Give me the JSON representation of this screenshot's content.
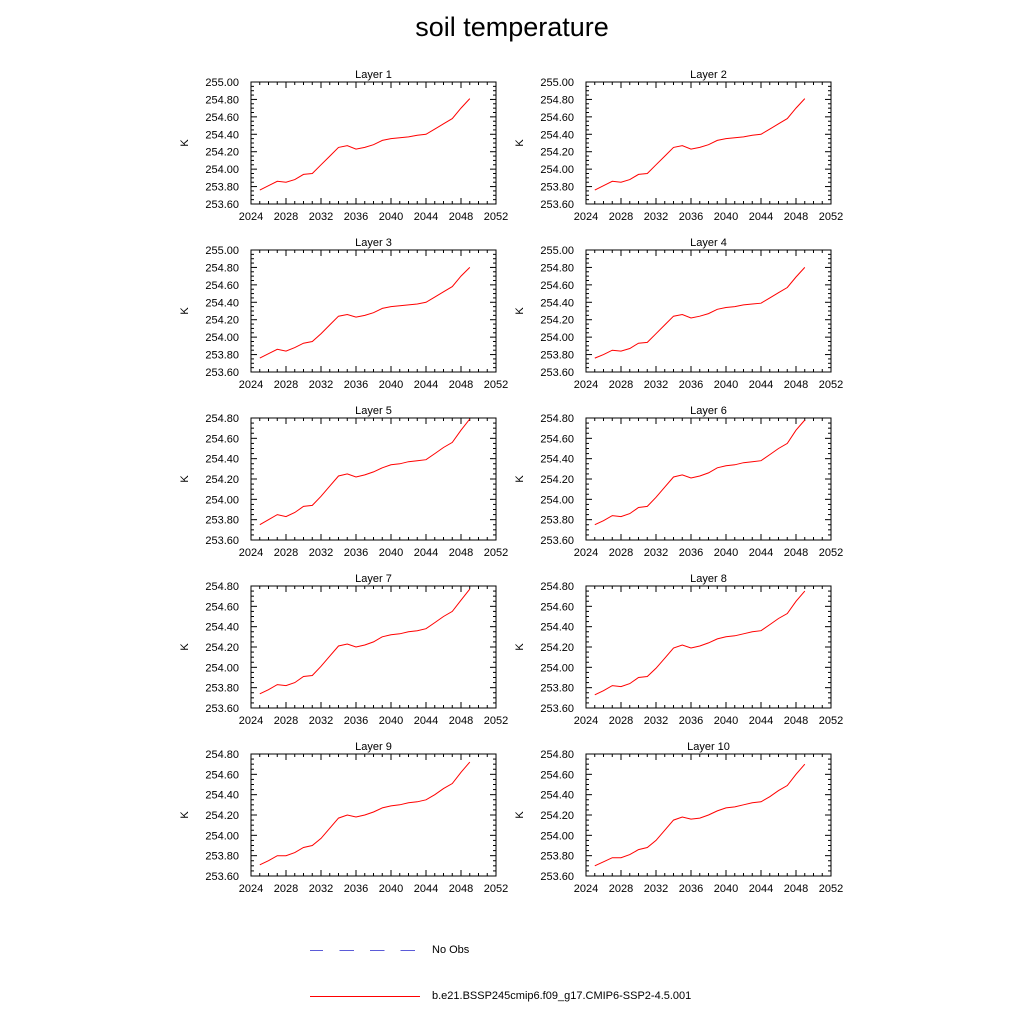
{
  "figure_title": "soil temperature",
  "legend": {
    "obs_label": "No Obs",
    "model_label": "b.e21.BSSP245cmip6.f09_g17.CMIP6-SSP2-4.5.001"
  },
  "colors": {
    "model": "#ff0000",
    "obs": "#5b5bd8"
  },
  "chart_data": [
    {
      "type": "line",
      "title": "Layer 1",
      "ylabel": "K",
      "xlim": [
        2024,
        2052
      ],
      "ylim": [
        253.6,
        255.0
      ],
      "xticks": [
        "2024",
        "2028",
        "2032",
        "2036",
        "2040",
        "2044",
        "2048",
        "2052"
      ],
      "yticks": [
        "253.60",
        "253.80",
        "254.00",
        "254.20",
        "254.40",
        "254.60",
        "254.80",
        "255.00"
      ],
      "series": [
        {
          "x": [
            2025,
            2026,
            2027,
            2028,
            2029,
            2030,
            2031,
            2032,
            2033,
            2034,
            2035,
            2036,
            2037,
            2038,
            2039,
            2040,
            2041,
            2042,
            2043,
            2044,
            2045,
            2046,
            2047,
            2048,
            2049
          ],
          "y": [
            253.76,
            253.81,
            253.86,
            253.85,
            253.88,
            253.94,
            253.95,
            254.05,
            254.15,
            254.25,
            254.27,
            254.23,
            254.25,
            254.28,
            254.33,
            254.35,
            254.36,
            254.37,
            254.39,
            254.4,
            254.46,
            254.52,
            254.58,
            254.7,
            254.81
          ]
        }
      ]
    },
    {
      "type": "line",
      "title": "Layer 2",
      "ylabel": "K",
      "xlim": [
        2024,
        2052
      ],
      "ylim": [
        253.6,
        255.0
      ],
      "xticks": [
        "2024",
        "2028",
        "2032",
        "2036",
        "2040",
        "2044",
        "2048",
        "2052"
      ],
      "yticks": [
        "253.60",
        "253.80",
        "254.00",
        "254.20",
        "254.40",
        "254.60",
        "254.80",
        "255.00"
      ],
      "series": [
        {
          "x": [
            2025,
            2026,
            2027,
            2028,
            2029,
            2030,
            2031,
            2032,
            2033,
            2034,
            2035,
            2036,
            2037,
            2038,
            2039,
            2040,
            2041,
            2042,
            2043,
            2044,
            2045,
            2046,
            2047,
            2048,
            2049
          ],
          "y": [
            253.76,
            253.81,
            253.86,
            253.85,
            253.88,
            253.94,
            253.95,
            254.05,
            254.15,
            254.25,
            254.27,
            254.23,
            254.25,
            254.28,
            254.33,
            254.35,
            254.36,
            254.37,
            254.39,
            254.4,
            254.46,
            254.52,
            254.58,
            254.7,
            254.81
          ]
        }
      ]
    },
    {
      "type": "line",
      "title": "Layer 3",
      "ylabel": "K",
      "xlim": [
        2024,
        2052
      ],
      "ylim": [
        253.6,
        255.0
      ],
      "xticks": [
        "2024",
        "2028",
        "2032",
        "2036",
        "2040",
        "2044",
        "2048",
        "2052"
      ],
      "yticks": [
        "253.60",
        "253.80",
        "254.00",
        "254.20",
        "254.40",
        "254.60",
        "254.80",
        "255.00"
      ],
      "series": [
        {
          "x": [
            2025,
            2026,
            2027,
            2028,
            2029,
            2030,
            2031,
            2032,
            2033,
            2034,
            2035,
            2036,
            2037,
            2038,
            2039,
            2040,
            2041,
            2042,
            2043,
            2044,
            2045,
            2046,
            2047,
            2048,
            2049
          ],
          "y": [
            253.76,
            253.81,
            253.86,
            253.84,
            253.88,
            253.93,
            253.95,
            254.04,
            254.14,
            254.24,
            254.26,
            254.23,
            254.25,
            254.28,
            254.33,
            254.35,
            254.36,
            254.37,
            254.38,
            254.4,
            254.46,
            254.52,
            254.58,
            254.7,
            254.8
          ]
        }
      ]
    },
    {
      "type": "line",
      "title": "Layer 4",
      "ylabel": "K",
      "xlim": [
        2024,
        2052
      ],
      "ylim": [
        253.6,
        255.0
      ],
      "xticks": [
        "2024",
        "2028",
        "2032",
        "2036",
        "2040",
        "2044",
        "2048",
        "2052"
      ],
      "yticks": [
        "253.60",
        "253.80",
        "254.00",
        "254.20",
        "254.40",
        "254.60",
        "254.80",
        "255.00"
      ],
      "series": [
        {
          "x": [
            2025,
            2026,
            2027,
            2028,
            2029,
            2030,
            2031,
            2032,
            2033,
            2034,
            2035,
            2036,
            2037,
            2038,
            2039,
            2040,
            2041,
            2042,
            2043,
            2044,
            2045,
            2046,
            2047,
            2048,
            2049
          ],
          "y": [
            253.76,
            253.8,
            253.85,
            253.84,
            253.87,
            253.93,
            253.94,
            254.04,
            254.14,
            254.24,
            254.26,
            254.22,
            254.24,
            254.27,
            254.32,
            254.34,
            254.35,
            254.37,
            254.38,
            254.39,
            254.45,
            254.51,
            254.57,
            254.69,
            254.8
          ]
        }
      ]
    },
    {
      "type": "line",
      "title": "Layer 5",
      "ylabel": "K",
      "xlim": [
        2024,
        2052
      ],
      "ylim": [
        253.6,
        254.8
      ],
      "xticks": [
        "2024",
        "2028",
        "2032",
        "2036",
        "2040",
        "2044",
        "2048",
        "2052"
      ],
      "yticks": [
        "253.60",
        "253.80",
        "254.00",
        "254.20",
        "254.40",
        "254.60",
        "254.80"
      ],
      "series": [
        {
          "x": [
            2025,
            2026,
            2027,
            2028,
            2029,
            2030,
            2031,
            2032,
            2033,
            2034,
            2035,
            2036,
            2037,
            2038,
            2039,
            2040,
            2041,
            2042,
            2043,
            2044,
            2045,
            2046,
            2047,
            2048,
            2049
          ],
          "y": [
            253.75,
            253.8,
            253.85,
            253.83,
            253.87,
            253.93,
            253.94,
            254.03,
            254.13,
            254.23,
            254.25,
            254.22,
            254.24,
            254.27,
            254.31,
            254.34,
            254.35,
            254.37,
            254.38,
            254.39,
            254.45,
            254.51,
            254.56,
            254.68,
            254.79
          ]
        }
      ]
    },
    {
      "type": "line",
      "title": "Layer 6",
      "ylabel": "K",
      "xlim": [
        2024,
        2052
      ],
      "ylim": [
        253.6,
        254.8
      ],
      "xticks": [
        "2024",
        "2028",
        "2032",
        "2036",
        "2040",
        "2044",
        "2048",
        "2052"
      ],
      "yticks": [
        "253.60",
        "253.80",
        "254.00",
        "254.20",
        "254.40",
        "254.60",
        "254.80"
      ],
      "series": [
        {
          "x": [
            2025,
            2026,
            2027,
            2028,
            2029,
            2030,
            2031,
            2032,
            2033,
            2034,
            2035,
            2036,
            2037,
            2038,
            2039,
            2040,
            2041,
            2042,
            2043,
            2044,
            2045,
            2046,
            2047,
            2048,
            2049
          ],
          "y": [
            253.75,
            253.79,
            253.84,
            253.83,
            253.86,
            253.92,
            253.93,
            254.02,
            254.12,
            254.22,
            254.24,
            254.21,
            254.23,
            254.26,
            254.31,
            254.33,
            254.34,
            254.36,
            254.37,
            254.38,
            254.44,
            254.5,
            254.55,
            254.68,
            254.78
          ]
        }
      ]
    },
    {
      "type": "line",
      "title": "Layer 7",
      "ylabel": "K",
      "xlim": [
        2024,
        2052
      ],
      "ylim": [
        253.6,
        254.8
      ],
      "xticks": [
        "2024",
        "2028",
        "2032",
        "2036",
        "2040",
        "2044",
        "2048",
        "2052"
      ],
      "yticks": [
        "253.60",
        "253.80",
        "254.00",
        "254.20",
        "254.40",
        "254.60",
        "254.80"
      ],
      "series": [
        {
          "x": [
            2025,
            2026,
            2027,
            2028,
            2029,
            2030,
            2031,
            2032,
            2033,
            2034,
            2035,
            2036,
            2037,
            2038,
            2039,
            2040,
            2041,
            2042,
            2043,
            2044,
            2045,
            2046,
            2047,
            2048,
            2049
          ],
          "y": [
            253.74,
            253.78,
            253.83,
            253.82,
            253.85,
            253.91,
            253.92,
            254.01,
            254.11,
            254.21,
            254.23,
            254.2,
            254.22,
            254.25,
            254.3,
            254.32,
            254.33,
            254.35,
            254.36,
            254.38,
            254.44,
            254.5,
            254.55,
            254.66,
            254.77
          ]
        }
      ]
    },
    {
      "type": "line",
      "title": "Layer 8",
      "ylabel": "K",
      "xlim": [
        2024,
        2052
      ],
      "ylim": [
        253.6,
        254.8
      ],
      "xticks": [
        "2024",
        "2028",
        "2032",
        "2036",
        "2040",
        "2044",
        "2048",
        "2052"
      ],
      "yticks": [
        "253.60",
        "253.80",
        "254.00",
        "254.20",
        "254.40",
        "254.60",
        "254.80"
      ],
      "series": [
        {
          "x": [
            2025,
            2026,
            2027,
            2028,
            2029,
            2030,
            2031,
            2032,
            2033,
            2034,
            2035,
            2036,
            2037,
            2038,
            2039,
            2040,
            2041,
            2042,
            2043,
            2044,
            2045,
            2046,
            2047,
            2048,
            2049
          ],
          "y": [
            253.73,
            253.77,
            253.82,
            253.81,
            253.84,
            253.9,
            253.91,
            253.99,
            254.09,
            254.19,
            254.22,
            254.19,
            254.21,
            254.24,
            254.28,
            254.3,
            254.31,
            254.33,
            254.35,
            254.36,
            254.42,
            254.48,
            254.53,
            254.65,
            254.75
          ]
        }
      ]
    },
    {
      "type": "line",
      "title": "Layer 9",
      "ylabel": "K",
      "xlim": [
        2024,
        2052
      ],
      "ylim": [
        253.6,
        254.8
      ],
      "xticks": [
        "2024",
        "2028",
        "2032",
        "2036",
        "2040",
        "2044",
        "2048",
        "2052"
      ],
      "yticks": [
        "253.60",
        "253.80",
        "254.00",
        "254.20",
        "254.40",
        "254.60",
        "254.80"
      ],
      "series": [
        {
          "x": [
            2025,
            2026,
            2027,
            2028,
            2029,
            2030,
            2031,
            2032,
            2033,
            2034,
            2035,
            2036,
            2037,
            2038,
            2039,
            2040,
            2041,
            2042,
            2043,
            2044,
            2045,
            2046,
            2047,
            2048,
            2049
          ],
          "y": [
            253.71,
            253.75,
            253.8,
            253.8,
            253.83,
            253.88,
            253.9,
            253.97,
            254.07,
            254.17,
            254.2,
            254.18,
            254.2,
            254.23,
            254.27,
            254.29,
            254.3,
            254.32,
            254.33,
            254.35,
            254.4,
            254.46,
            254.51,
            254.62,
            254.72
          ]
        }
      ]
    },
    {
      "type": "line",
      "title": "Layer 10",
      "ylabel": "K",
      "xlim": [
        2024,
        2052
      ],
      "ylim": [
        253.6,
        254.8
      ],
      "xticks": [
        "2024",
        "2028",
        "2032",
        "2036",
        "2040",
        "2044",
        "2048",
        "2052"
      ],
      "yticks": [
        "253.60",
        "253.80",
        "254.00",
        "254.20",
        "254.40",
        "254.60",
        "254.80"
      ],
      "series": [
        {
          "x": [
            2025,
            2026,
            2027,
            2028,
            2029,
            2030,
            2031,
            2032,
            2033,
            2034,
            2035,
            2036,
            2037,
            2038,
            2039,
            2040,
            2041,
            2042,
            2043,
            2044,
            2045,
            2046,
            2047,
            2048,
            2049
          ],
          "y": [
            253.7,
            253.74,
            253.78,
            253.78,
            253.81,
            253.86,
            253.88,
            253.95,
            254.05,
            254.15,
            254.18,
            254.16,
            254.17,
            254.2,
            254.24,
            254.27,
            254.28,
            254.3,
            254.32,
            254.33,
            254.38,
            254.44,
            254.49,
            254.6,
            254.7
          ]
        }
      ]
    }
  ]
}
